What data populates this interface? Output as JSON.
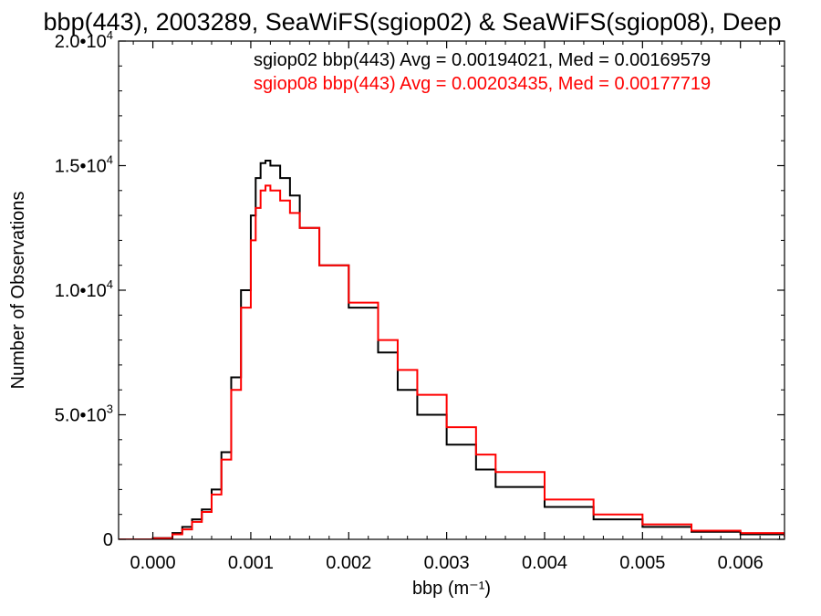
{
  "chart_data": {
    "type": "line",
    "title": "bbp(443), 2003289, SeaWiFS(sgiop02) & SeaWiFS(sgiop08), Deep",
    "xlabel": "bbp (m⁻¹)",
    "ylabel": "Number of Observations",
    "xlim": [
      -0.00035,
      0.00645
    ],
    "ylim": [
      0,
      20000
    ],
    "x_ticks": [
      {
        "value": 0.0,
        "label": "0.000"
      },
      {
        "value": 0.001,
        "label": "0.001"
      },
      {
        "value": 0.002,
        "label": "0.002"
      },
      {
        "value": 0.003,
        "label": "0.003"
      },
      {
        "value": 0.004,
        "label": "0.004"
      },
      {
        "value": 0.005,
        "label": "0.005"
      },
      {
        "value": 0.006,
        "label": "0.006"
      }
    ],
    "y_ticks": [
      {
        "value": 0,
        "mantissa": "0",
        "exp": ""
      },
      {
        "value": 5000,
        "mantissa": "5.0•10",
        "exp": "3"
      },
      {
        "value": 10000,
        "mantissa": "1.0•10",
        "exp": "4"
      },
      {
        "value": 15000,
        "mantissa": "1.5•10",
        "exp": "4"
      },
      {
        "value": 20000,
        "mantissa": "2.0•10",
        "exp": "4"
      }
    ],
    "legend": [
      {
        "text": "sgiop02 bbp(443) Avg = 0.00194021, Med = 0.00169579",
        "color": "#000000"
      },
      {
        "text": "sgiop08 bbp(443) Avg = 0.00203435, Med = 0.00177719",
        "color": "#ff0000"
      }
    ],
    "grid": false,
    "series": [
      {
        "color": "#000000",
        "points": [
          [
            -0.00035,
            0
          ],
          [
            0.0,
            50
          ],
          [
            0.0002,
            250
          ],
          [
            0.0003,
            500
          ],
          [
            0.0004,
            800
          ],
          [
            0.0005,
            1200
          ],
          [
            0.0006,
            2000
          ],
          [
            0.0007,
            3500
          ],
          [
            0.0008,
            6500
          ],
          [
            0.0009,
            10000
          ],
          [
            0.001,
            13000
          ],
          [
            0.00105,
            14500
          ],
          [
            0.0011,
            15100
          ],
          [
            0.00115,
            15200
          ],
          [
            0.0012,
            15000
          ],
          [
            0.0013,
            14500
          ],
          [
            0.0014,
            13800
          ],
          [
            0.0015,
            12500
          ],
          [
            0.0017,
            11000
          ],
          [
            0.002,
            9300
          ],
          [
            0.0023,
            7500
          ],
          [
            0.0025,
            6000
          ],
          [
            0.0027,
            5000
          ],
          [
            0.003,
            3800
          ],
          [
            0.0033,
            2800
          ],
          [
            0.0035,
            2100
          ],
          [
            0.004,
            1300
          ],
          [
            0.0045,
            800
          ],
          [
            0.005,
            500
          ],
          [
            0.0055,
            300
          ],
          [
            0.006,
            200
          ],
          [
            0.00645,
            100
          ]
        ]
      },
      {
        "color": "#ff0000",
        "points": [
          [
            -0.00035,
            0
          ],
          [
            0.0,
            40
          ],
          [
            0.0002,
            200
          ],
          [
            0.0003,
            400
          ],
          [
            0.0004,
            700
          ],
          [
            0.0005,
            1100
          ],
          [
            0.0006,
            1800
          ],
          [
            0.0007,
            3200
          ],
          [
            0.0008,
            6000
          ],
          [
            0.0009,
            9300
          ],
          [
            0.001,
            12000
          ],
          [
            0.00105,
            13300
          ],
          [
            0.0011,
            14000
          ],
          [
            0.00115,
            14200
          ],
          [
            0.0012,
            14000
          ],
          [
            0.0013,
            13600
          ],
          [
            0.0014,
            13100
          ],
          [
            0.0015,
            12500
          ],
          [
            0.0017,
            11000
          ],
          [
            0.002,
            9500
          ],
          [
            0.0023,
            8000
          ],
          [
            0.0025,
            6800
          ],
          [
            0.0027,
            5800
          ],
          [
            0.003,
            4500
          ],
          [
            0.0033,
            3400
          ],
          [
            0.0035,
            2700
          ],
          [
            0.004,
            1600
          ],
          [
            0.0045,
            1000
          ],
          [
            0.005,
            600
          ],
          [
            0.0055,
            350
          ],
          [
            0.006,
            250
          ],
          [
            0.00645,
            120
          ]
        ]
      }
    ]
  }
}
